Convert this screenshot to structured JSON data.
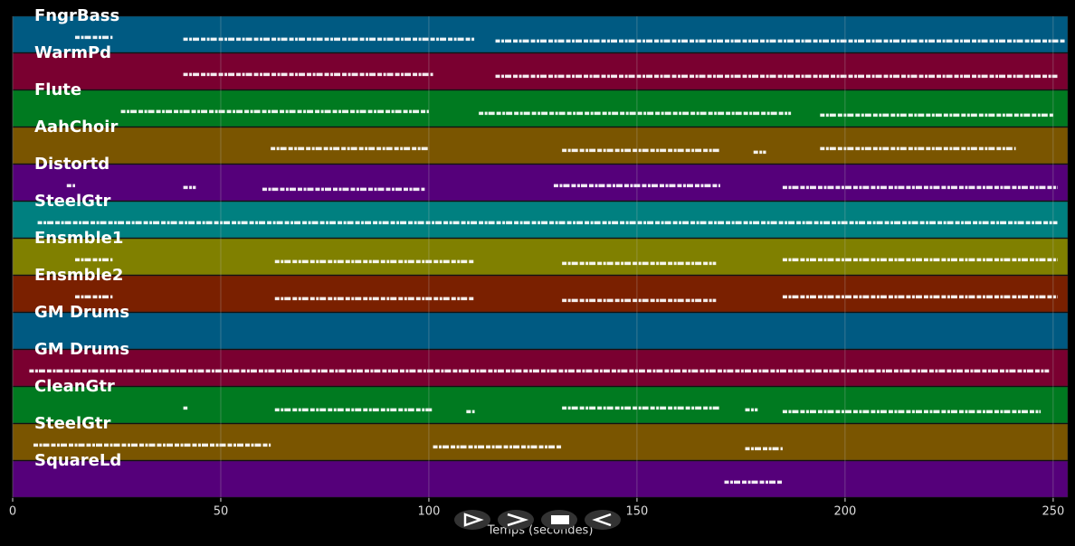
{
  "chart_data": {
    "type": "pianoroll",
    "xlabel": "Temps (secondes)",
    "xlim": [
      0,
      253.5
    ],
    "xticks": [
      0,
      50,
      100,
      150,
      200,
      250
    ],
    "grid": true,
    "tracks": [
      {
        "name": "FngrBass",
        "color": "#005a82",
        "segments": [
          [
            15,
            24
          ],
          [
            41,
            111
          ],
          [
            116,
            253
          ]
        ]
      },
      {
        "name": "WarmPd",
        "color": "#7a0030",
        "segments": [
          [
            41,
            101
          ],
          [
            116,
            251
          ]
        ]
      },
      {
        "name": "Flute",
        "color": "#007a20",
        "segments": [
          [
            26,
            100
          ],
          [
            112,
            187
          ],
          [
            194,
            250
          ]
        ]
      },
      {
        "name": "AahChoir",
        "color": "#7a5500",
        "segments": [
          [
            62,
            100
          ],
          [
            132,
            170
          ],
          [
            178,
            181
          ],
          [
            194,
            241
          ]
        ]
      },
      {
        "name": "Distortd",
        "color": "#55007a",
        "segments": [
          [
            13,
            15
          ],
          [
            41,
            44
          ],
          [
            60,
            99
          ],
          [
            130,
            170
          ],
          [
            185,
            251
          ]
        ]
      },
      {
        "name": "SteelGtr",
        "color": "#008080",
        "segments": [
          [
            6,
            251
          ]
        ]
      },
      {
        "name": "Ensmble1",
        "color": "#808000",
        "segments": [
          [
            15,
            24
          ],
          [
            63,
            111
          ],
          [
            132,
            169
          ],
          [
            185,
            251
          ]
        ]
      },
      {
        "name": "Ensmble2",
        "color": "#7a2000",
        "segments": [
          [
            15,
            24
          ],
          [
            63,
            111
          ],
          [
            132,
            169
          ],
          [
            185,
            251
          ]
        ]
      },
      {
        "name": "GM Drums",
        "color": "#005a82",
        "segments": []
      },
      {
        "name": "GM Drums",
        "color": "#7a0030",
        "segments": [
          [
            4,
            249
          ]
        ]
      },
      {
        "name": "CleanGtr",
        "color": "#007a20",
        "segments": [
          [
            41,
            42
          ],
          [
            63,
            101
          ],
          [
            109,
            111
          ],
          [
            132,
            170
          ],
          [
            176,
            179
          ],
          [
            185,
            247
          ]
        ]
      },
      {
        "name": "SteelGtr",
        "color": "#7a5500",
        "segments": [
          [
            5,
            62
          ],
          [
            101,
            132
          ],
          [
            176,
            185
          ]
        ]
      },
      {
        "name": "SquareLd",
        "color": "#55007a",
        "segments": [
          [
            171,
            185
          ]
        ]
      }
    ]
  }
}
